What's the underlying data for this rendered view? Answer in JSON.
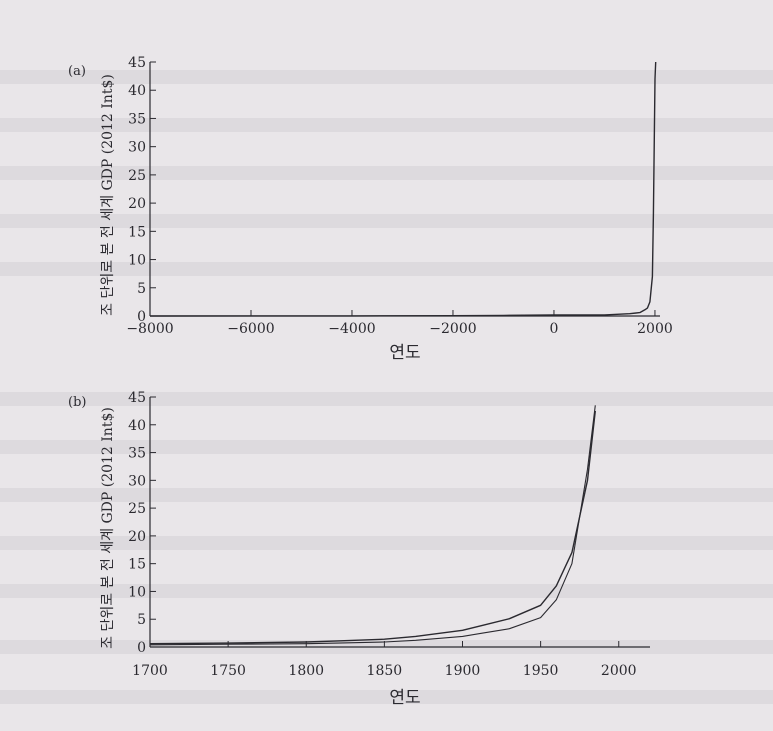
{
  "chart_data": [
    {
      "panel_label": "(a)",
      "type": "line",
      "xlabel": "연도",
      "ylabel": "조 단위로 본 전 세계 GDP (2012 Int$)",
      "xlim": [
        -8000,
        2100
      ],
      "ylim": [
        0,
        45
      ],
      "xticks": [
        -8000,
        -6000,
        -4000,
        -2000,
        0,
        2000
      ],
      "xtick_labels": [
        "−8000",
        "−6000",
        "−4000",
        "−2000",
        "0",
        "2000"
      ],
      "yticks": [
        0,
        5,
        10,
        15,
        20,
        25,
        30,
        35,
        40,
        45
      ],
      "series": [
        {
          "x": [
            -8000,
            -6000,
            -4000,
            -2000,
            -1000,
            0,
            1000,
            1500,
            1700,
            1800,
            1850,
            1900,
            1950,
            1970,
            1990,
            2000,
            2015
          ],
          "y": [
            0.005,
            0.01,
            0.02,
            0.05,
            0.1,
            0.17,
            0.2,
            0.4,
            0.6,
            1.1,
            1.4,
            2.5,
            7.0,
            18.0,
            33.0,
            42.0,
            45.0
          ]
        }
      ]
    },
    {
      "panel_label": "(b)",
      "type": "line",
      "xlabel": "연도",
      "ylabel": "조 단위로 본 전 세계 GDP (2012 Int$)",
      "xlim": [
        1700,
        2020
      ],
      "ylim": [
        0,
        45
      ],
      "xticks": [
        1700,
        1750,
        1800,
        1850,
        1900,
        1950,
        2000
      ],
      "yticks": [
        0,
        5,
        10,
        15,
        20,
        25,
        30,
        35,
        40,
        45
      ],
      "series": [
        {
          "x": [
            1700,
            1750,
            1800,
            1820,
            1850,
            1870,
            1900,
            1913,
            1930,
            1950,
            1960,
            1970,
            1980,
            1985
          ],
          "y": [
            0.6,
            0.7,
            0.9,
            1.1,
            1.4,
            1.9,
            3.0,
            3.9,
            5.1,
            7.5,
            11.0,
            17.0,
            30.0,
            42.5
          ]
        },
        {
          "x": [
            1700,
            1750,
            1800,
            1820,
            1850,
            1870,
            1900,
            1913,
            1930,
            1950,
            1960,
            1970,
            1980,
            1985
          ],
          "y": [
            0.4,
            0.5,
            0.6,
            0.7,
            0.9,
            1.2,
            1.9,
            2.5,
            3.3,
            5.3,
            8.5,
            15.0,
            32.0,
            43.5
          ]
        }
      ]
    }
  ]
}
